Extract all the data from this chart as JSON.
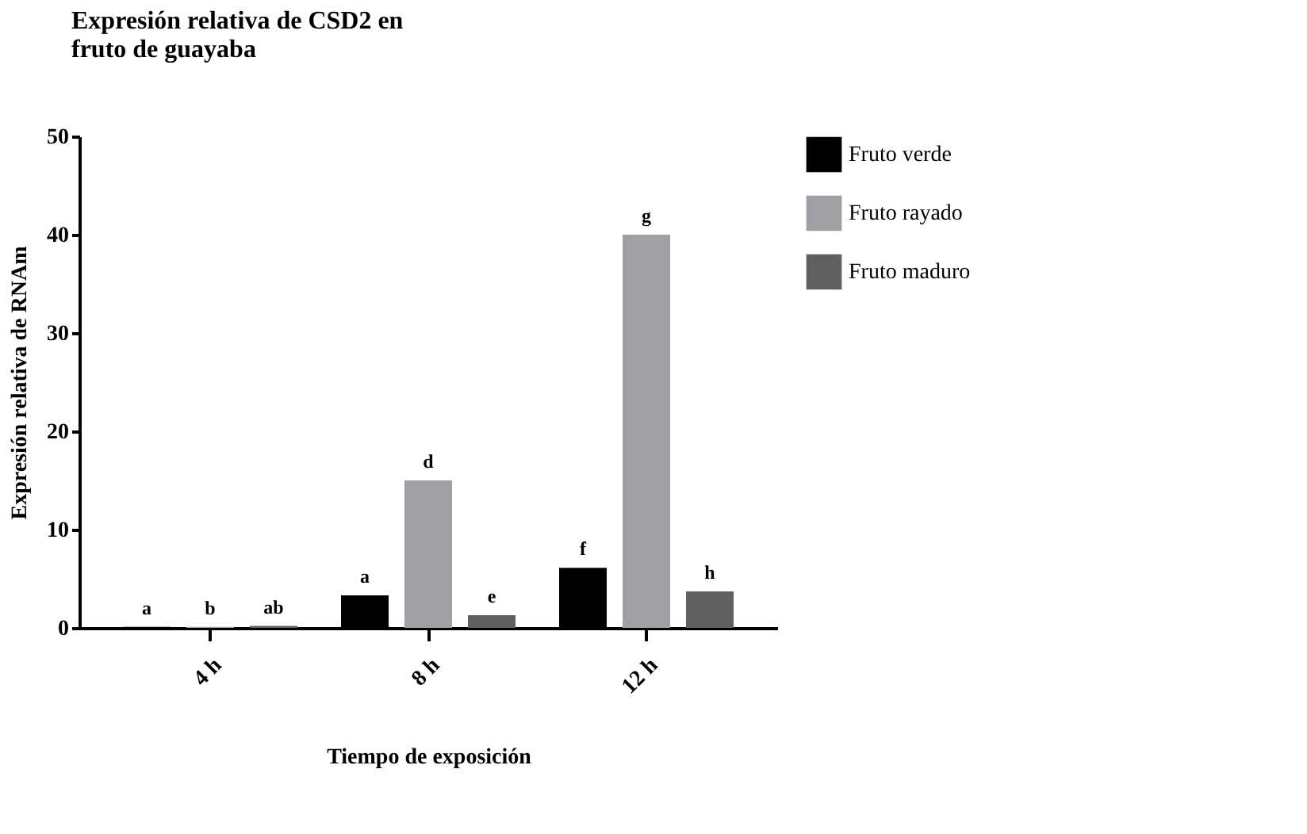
{
  "chart_data": {
    "type": "bar",
    "title": [
      "Expresión relativa de CSD2 en",
      "fruto de guayaba"
    ],
    "xlabel": "Tiempo de exposición",
    "ylabel": "Expresión relativa de RNAm",
    "categories": [
      "4 h",
      "8 h",
      "12 h"
    ],
    "series": [
      {
        "name": "Fruto verde",
        "color": "#000000",
        "values": [
          0.1,
          3.3,
          6.1
        ],
        "value_labels": [
          "a",
          "a",
          "f"
        ]
      },
      {
        "name": "Fruto rayado",
        "color": "#a0a0a4",
        "values": [
          0.1,
          15,
          40
        ],
        "value_labels": [
          "b",
          "d",
          "g"
        ]
      },
      {
        "name": "Fruto maduro",
        "color": "#606060",
        "values": [
          0.2,
          1.3,
          3.7
        ],
        "value_labels": [
          "ab",
          "e",
          "h"
        ]
      }
    ],
    "ylim": [
      0,
      50
    ],
    "yticks": [
      0,
      10,
      20,
      30,
      40,
      50
    ],
    "grid": false,
    "legend": "top right"
  }
}
